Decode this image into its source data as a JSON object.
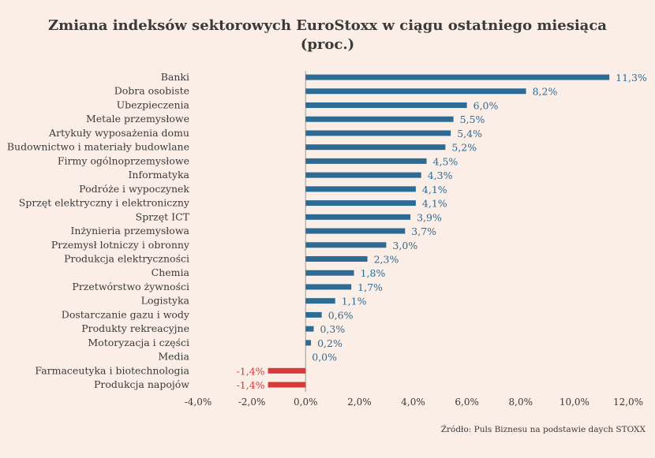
{
  "chart_data": {
    "type": "bar",
    "orientation": "horizontal",
    "title": "Zmiana indeksów sektorowych EuroStoxx w ciągu ostatniego miesiąca",
    "subtitle": "(proc.)",
    "source": "Źródło: Puls Biznesu na podstawie daych STOXX",
    "categories": [
      "Banki",
      "Dobra osobiste",
      "Ubezpieczenia",
      "Metale przemysłowe",
      "Artykuły wyposażenia domu",
      "Budownictwo i materiały budowlane",
      "Firmy ogólnoprzemysłowe",
      "Informatyka",
      "Podróże i wypoczynek",
      "Sprzęt elektryczny i elektroniczny",
      "Sprzęt ICT",
      "Inżynieria przemysłowa",
      "Przemysł lotniczy i obronny",
      "Produkcja elektryczności",
      "Chemia",
      "Przetwórstwo żywności",
      "Logistyka",
      "Dostarczanie gazu i wody",
      "Produkty rekreacyjne",
      "Motoryzacja i części",
      "Media",
      "Farmaceutyka i biotechnologia",
      "Produkcja napojów"
    ],
    "values": [
      11.3,
      8.2,
      6.0,
      5.5,
      5.4,
      5.2,
      4.5,
      4.3,
      4.1,
      4.1,
      3.9,
      3.7,
      3.0,
      2.3,
      1.8,
      1.7,
      1.1,
      0.6,
      0.3,
      0.2,
      0.0,
      -1.4,
      -1.4
    ],
    "value_labels": [
      "11,3%",
      "8,2%",
      "6,0%",
      "5,5%",
      "5,4%",
      "5,2%",
      "4,5%",
      "4,3%",
      "4,1%",
      "4,1%",
      "3,9%",
      "3,7%",
      "3,0%",
      "2,3%",
      "1,8%",
      "1,7%",
      "1,1%",
      "0,6%",
      "0,3%",
      "0,2%",
      "0,0%",
      "-1,4%",
      "-1,4%"
    ],
    "xlim": [
      -4,
      12
    ],
    "xticks": [
      -4,
      -2,
      0,
      2,
      4,
      6,
      8,
      10,
      12
    ],
    "xtick_labels": [
      "-4,0%",
      "-2,0%",
      "0,0%",
      "2,0%",
      "4,0%",
      "6,0%",
      "8,0%",
      "10,0%",
      "12,0%"
    ],
    "grid": false,
    "colors": {
      "positive": "#2e6b94",
      "negative": "#d63a3a",
      "positive_label": "#2e6b94",
      "negative_label": "#d63a3a",
      "text": "#3a3a3a",
      "axis": "#9a9a9a",
      "background": "#fbeee6"
    }
  }
}
